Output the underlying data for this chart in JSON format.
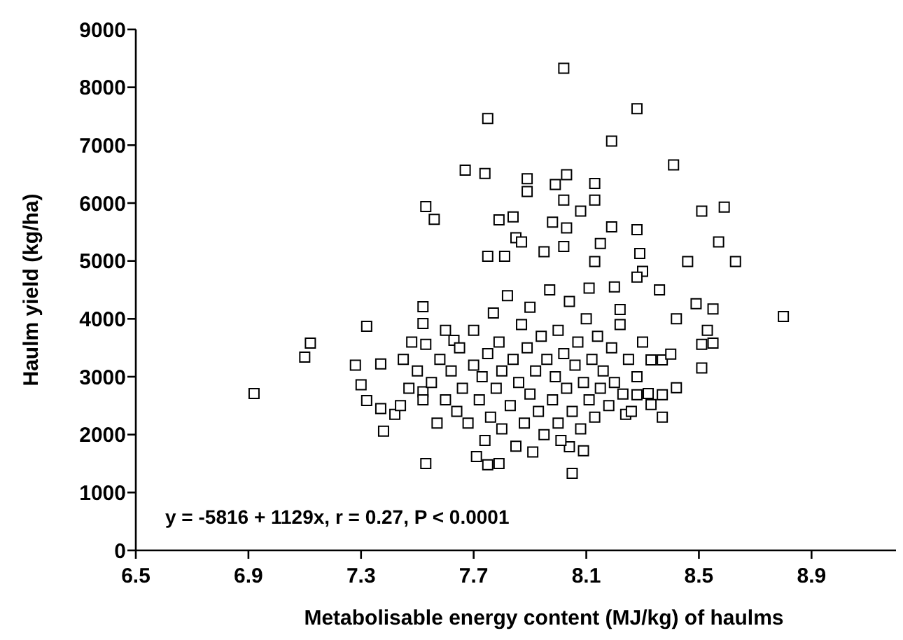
{
  "chart_data": {
    "type": "scatter",
    "xlabel": "Metabolisable energy content (MJ/kg) of haulms",
    "ylabel": "Haulm yield (kg/ha)",
    "annotations": [
      "y = -5816 + 1129x, r = 0.27, P < 0.0001"
    ],
    "xlim": [
      6.5,
      9.2
    ],
    "xticks": [
      6.5,
      6.9,
      7.3,
      7.7,
      8.1,
      8.5,
      8.9
    ],
    "ylim": [
      0,
      9000
    ],
    "yticks": [
      0,
      1000,
      2000,
      3000,
      4000,
      5000,
      6000,
      7000,
      8000,
      9000
    ],
    "grid": false,
    "marker": "square",
    "series": [
      {
        "color": "#000000",
        "x": [
          7.67,
          7.53,
          7.56,
          8.02,
          8.28,
          7.75,
          8.19,
          8.41,
          7.74,
          8.51,
          8.59,
          8.57,
          8.63,
          7.89,
          7.89,
          8.03,
          7.99,
          8.02,
          8.13,
          8.13,
          8.08,
          8.19,
          8.28,
          7.79,
          7.84,
          7.85,
          7.87,
          7.98,
          8.03,
          7.95,
          8.02,
          8.15,
          8.29,
          8.46,
          7.81,
          7.75,
          6.92,
          7.1,
          7.12,
          7.32,
          7.28,
          7.37,
          7.3,
          7.32,
          7.37,
          7.38,
          7.42,
          7.52,
          7.52,
          7.52,
          7.53,
          7.53,
          7.63,
          8.8,
          8.49,
          8.55,
          8.42,
          8.53,
          8.55,
          8.51,
          8.51,
          8.37,
          8.4,
          8.33,
          8.42,
          8.37,
          8.32,
          8.28,
          8.24,
          8.37,
          8.33,
          8.04,
          8.05,
          8.09,
          7.79,
          7.75,
          7.71,
          8.36,
          8.2,
          8.3,
          8.13,
          8.11,
          8.22,
          8.28,
          7.55,
          7.58,
          7.6,
          7.62,
          7.64,
          7.65,
          7.66,
          7.68,
          7.7,
          7.7,
          7.72,
          7.73,
          7.74,
          7.75,
          7.76,
          7.77,
          7.78,
          7.79,
          7.8,
          7.8,
          7.82,
          7.83,
          7.84,
          7.85,
          7.86,
          7.87,
          7.88,
          7.89,
          7.9,
          7.9,
          7.91,
          7.92,
          7.93,
          7.94,
          7.95,
          7.96,
          7.97,
          7.98,
          7.99,
          8.0,
          8.0,
          8.01,
          8.02,
          8.03,
          8.04,
          8.05,
          8.06,
          8.07,
          8.08,
          8.09,
          8.1,
          8.11,
          8.12,
          8.13,
          8.14,
          8.15,
          8.16,
          8.18,
          8.19,
          8.2,
          8.22,
          8.23,
          8.25,
          8.26,
          8.28,
          8.3,
          7.6,
          7.57,
          7.52,
          7.5,
          7.47,
          7.45,
          7.44,
          7.48
        ],
        "values": [
          6570,
          5940,
          5720,
          8330,
          7630,
          7460,
          7070,
          6660,
          6510,
          5860,
          5930,
          5330,
          4990,
          6420,
          6200,
          6490,
          6320,
          6050,
          6340,
          6050,
          5860,
          5590,
          5540,
          5710,
          5760,
          5400,
          5330,
          5670,
          5570,
          5160,
          5250,
          5300,
          5130,
          4990,
          5080,
          5080,
          2710,
          3340,
          3580,
          3870,
          3200,
          3220,
          2860,
          2590,
          2450,
          2060,
          2350,
          2740,
          3920,
          4210,
          3560,
          1500,
          3630,
          4040,
          4260,
          4170,
          4000,
          3800,
          3580,
          3560,
          3150,
          3290,
          3390,
          3290,
          2810,
          2690,
          2710,
          2690,
          2350,
          2300,
          2520,
          1790,
          1330,
          1720,
          1500,
          1480,
          1620,
          4500,
          4550,
          4820,
          4990,
          4530,
          4160,
          4720,
          2900,
          3300,
          2600,
          3100,
          2400,
          3500,
          2800,
          2200,
          3200,
          3800,
          2600,
          3000,
          1900,
          3400,
          2300,
          4100,
          2800,
          3600,
          2100,
          3100,
          4400,
          2500,
          3300,
          1800,
          2900,
          3900,
          2200,
          3500,
          2700,
          4200,
          1700,
          3100,
          2400,
          3700,
          2000,
          3300,
          4500,
          2600,
          3000,
          2200,
          3800,
          1900,
          3400,
          2800,
          4300,
          2400,
          3200,
          3600,
          2100,
          2900,
          4000,
          2600,
          3300,
          2300,
          3700,
          2800,
          3100,
          2500,
          3500,
          2900,
          3900,
          2700,
          3300,
          2400,
          3000,
          3600,
          3800,
          2200,
          2600,
          3100,
          2800,
          3300,
          2500,
          3600
        ]
      }
    ]
  }
}
